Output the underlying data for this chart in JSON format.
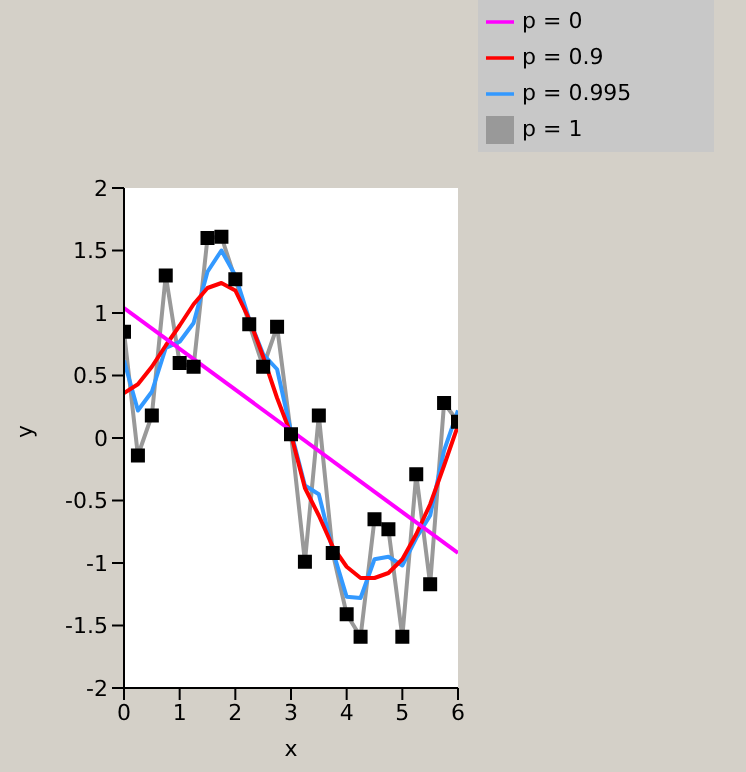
{
  "chart_data": {
    "type": "line",
    "xlabel": "x",
    "ylabel": "y",
    "xlim": [
      0,
      6
    ],
    "ylim": [
      -2,
      2
    ],
    "xticks": [
      0,
      1,
      2,
      3,
      4,
      5,
      6
    ],
    "yticks": [
      -2,
      -1.5,
      -1,
      -0.5,
      0,
      0.5,
      1,
      1.5,
      2
    ],
    "grid": false,
    "legend": "top right",
    "x": [
      0,
      0.25,
      0.5,
      0.75,
      1,
      1.25,
      1.5,
      1.75,
      2,
      2.25,
      2.5,
      2.75,
      3,
      3.25,
      3.5,
      3.75,
      4,
      4.25,
      4.5,
      4.75,
      5,
      5.25,
      5.5,
      5.75,
      6
    ],
    "series": [
      {
        "name": "p = 0",
        "color": "#ff00ff",
        "x": [
          0,
          6
        ],
        "values": [
          1.04,
          -0.92
        ],
        "marker": "none"
      },
      {
        "name": "p = 0.9",
        "color": "#ff0000",
        "values": [
          0.36,
          0.43,
          0.57,
          0.74,
          0.9,
          1.07,
          1.2,
          1.24,
          1.18,
          0.95,
          0.65,
          0.32,
          0.03,
          -0.4,
          -0.62,
          -0.87,
          -1.03,
          -1.12,
          -1.12,
          -1.08,
          -0.97,
          -0.77,
          -0.53,
          -0.22,
          0.1
        ],
        "marker": "none"
      },
      {
        "name": "p = 0.995",
        "color": "#3399ff",
        "values": [
          0.62,
          0.22,
          0.37,
          0.72,
          0.77,
          0.92,
          1.33,
          1.5,
          1.3,
          0.95,
          0.67,
          0.55,
          0.05,
          -0.38,
          -0.45,
          -0.9,
          -1.27,
          -1.28,
          -0.97,
          -0.95,
          -1.02,
          -0.8,
          -0.62,
          -0.1,
          0.22
        ],
        "marker": "none"
      },
      {
        "name": "p = 1",
        "color": "#999999",
        "values": [
          0.85,
          -0.14,
          0.18,
          1.3,
          0.6,
          0.57,
          1.6,
          1.61,
          1.27,
          0.91,
          0.57,
          0.89,
          0.03,
          -0.99,
          0.18,
          -0.92,
          -1.41,
          -1.59,
          -0.65,
          -0.73,
          -1.59,
          -0.29,
          -1.17,
          0.28,
          0.13
        ],
        "marker": "square"
      }
    ]
  }
}
